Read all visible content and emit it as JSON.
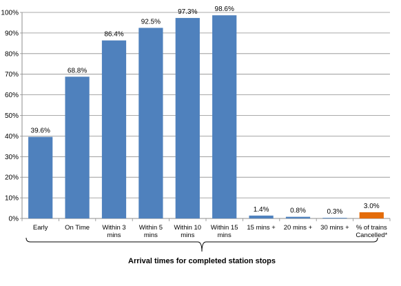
{
  "chart_data": {
    "type": "bar",
    "categories": [
      "Early",
      "On Time",
      "Within 3 mins",
      "Within 5 mins",
      "Within 10 mins",
      "Within 15 mins",
      "15 mins +",
      "20 mins +",
      "30 mins +",
      "% of trains Cancelled*"
    ],
    "category_lines": [
      [
        "Early"
      ],
      [
        "On Time"
      ],
      [
        "Within 3",
        "mins"
      ],
      [
        "Within 5",
        "mins"
      ],
      [
        "Within 10",
        "mins"
      ],
      [
        "Within 15",
        "mins"
      ],
      [
        "15 mins +"
      ],
      [
        "20 mins +"
      ],
      [
        "30 mins +"
      ],
      [
        "% of trains",
        "Cancelled*"
      ]
    ],
    "values": [
      39.6,
      68.8,
      86.4,
      92.5,
      97.3,
      98.6,
      1.4,
      0.8,
      0.3,
      3.0
    ],
    "data_labels": [
      "39.6%",
      "68.8%",
      "86.4%",
      "92.5%",
      "97.3%",
      "98.6%",
      "1.4%",
      "0.8%",
      "0.3%",
      "3.0%"
    ],
    "bar_colors": [
      "#4f81bd",
      "#4f81bd",
      "#4f81bd",
      "#4f81bd",
      "#4f81bd",
      "#4f81bd",
      "#4f81bd",
      "#4f81bd",
      "#4f81bd",
      "#e46c0a"
    ],
    "ylim": [
      0,
      100
    ],
    "yticks": [
      0,
      10,
      20,
      30,
      40,
      50,
      60,
      70,
      80,
      90,
      100
    ],
    "ytick_labels": [
      "0%",
      "10%",
      "20%",
      "30%",
      "40%",
      "50%",
      "60%",
      "70%",
      "80%",
      "90%",
      "100%"
    ],
    "grid": true,
    "legend": "none",
    "brace_label": "Arrival times for completed station stops"
  }
}
